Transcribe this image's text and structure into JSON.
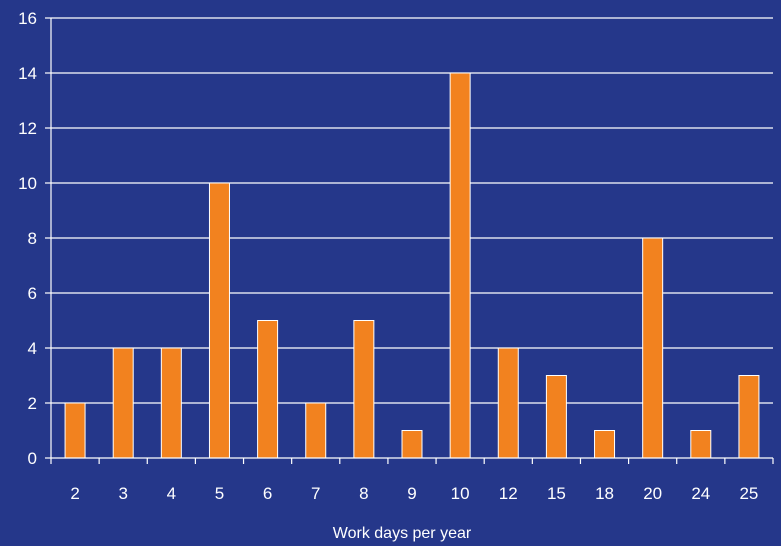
{
  "chart_data": {
    "type": "bar",
    "categories": [
      "2",
      "3",
      "4",
      "5",
      "6",
      "7",
      "8",
      "9",
      "10",
      "12",
      "15",
      "18",
      "20",
      "24",
      "25"
    ],
    "values": [
      2,
      4,
      4,
      10,
      5,
      2,
      5,
      1,
      14,
      4,
      3,
      1,
      8,
      1,
      3
    ],
    "title": "",
    "xlabel": "Work days per year",
    "ylabel": "",
    "ylim": [
      0,
      16
    ],
    "yticks": [
      0,
      2,
      4,
      6,
      8,
      10,
      12,
      14,
      16
    ],
    "grid": "horizontal",
    "legend": "none",
    "colors": {
      "background": "#25378a",
      "bar": "#f2821f",
      "bar_edge": "#ffffff",
      "grid": "#ffffff",
      "text": "#ffffff"
    }
  }
}
